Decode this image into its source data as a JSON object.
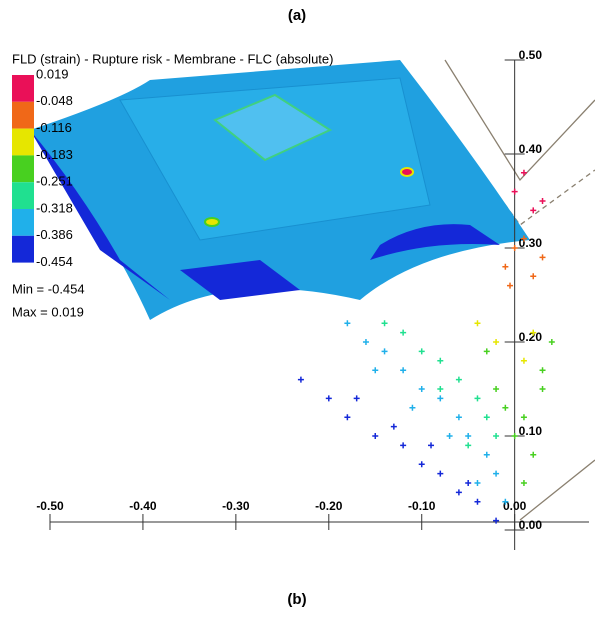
{
  "panel_label": "(a)",
  "caption": "(b)",
  "header": "FLD (strain) - Rupture risk - Membrane - FLC  (absolute)",
  "legend": {
    "labels": [
      "0.019",
      "-0.048",
      "-0.116",
      "-0.183",
      "-0.251",
      "-0.318",
      "-0.386",
      "-0.454"
    ],
    "colors": [
      "#ea1058",
      "#f06818",
      "#e6e600",
      "#48d020",
      "#20e090",
      "#20b0ea",
      "#1428d8"
    ]
  },
  "min_text": "Min = -0.454",
  "max_text": "Max =  0.019",
  "chart_data": {
    "type": "scatter",
    "xlim": [
      -0.5,
      0.08
    ],
    "ylim": [
      0,
      0.5
    ],
    "xticks": [
      {
        "value": -0.5,
        "label": "-0.50"
      },
      {
        "value": -0.4,
        "label": "-0.40"
      },
      {
        "value": -0.3,
        "label": "-0.30"
      },
      {
        "value": -0.2,
        "label": "-0.20"
      },
      {
        "value": -0.1,
        "label": "-0.10"
      },
      {
        "value": 0,
        "label": "0.00"
      }
    ],
    "yticks": [
      {
        "value": 0,
        "label": "0.00"
      },
      {
        "value": 0.1,
        "label": "0.10"
      },
      {
        "value": 0.2,
        "label": "0.20"
      },
      {
        "value": 0.3,
        "label": "0.30"
      },
      {
        "value": 0.4,
        "label": "0.40"
      },
      {
        "value": 0.5,
        "label": "0.50"
      }
    ],
    "series": [
      {
        "color": "#1428d8",
        "x": [
          -0.23,
          -0.2,
          -0.18,
          -0.15,
          -0.12,
          -0.1,
          -0.08,
          -0.06,
          -0.04,
          -0.02,
          -0.17,
          -0.13,
          -0.09,
          -0.05
        ],
        "values": [
          0.16,
          0.14,
          0.12,
          0.1,
          0.09,
          0.07,
          0.06,
          0.04,
          0.03,
          0.01,
          0.14,
          0.11,
          0.09,
          0.05
        ]
      },
      {
        "color": "#20b0ea",
        "x": [
          -0.18,
          -0.16,
          -0.14,
          -0.12,
          -0.1,
          -0.08,
          -0.06,
          -0.05,
          -0.03,
          -0.02,
          -0.01,
          -0.15,
          -0.11,
          -0.07,
          -0.04
        ],
        "values": [
          0.22,
          0.2,
          0.19,
          0.17,
          0.15,
          0.14,
          0.12,
          0.1,
          0.08,
          0.06,
          0.03,
          0.17,
          0.13,
          0.1,
          0.05
        ]
      },
      {
        "color": "#20e090",
        "x": [
          -0.14,
          -0.12,
          -0.1,
          -0.08,
          -0.06,
          -0.04,
          -0.03,
          -0.02,
          -0.08,
          -0.05
        ],
        "values": [
          0.22,
          0.21,
          0.19,
          0.18,
          0.16,
          0.14,
          0.12,
          0.1,
          0.15,
          0.09
        ]
      },
      {
        "color": "#48d020",
        "x": [
          -0.03,
          -0.02,
          -0.01,
          0,
          0.01,
          0.02,
          0.03,
          0.04,
          0.01,
          0.03
        ],
        "values": [
          0.19,
          0.15,
          0.13,
          0.1,
          0.05,
          0.08,
          0.17,
          0.2,
          0.12,
          0.15
        ]
      },
      {
        "color": "#e6e600",
        "x": [
          -0.04,
          -0.02,
          0.01,
          0.02
        ],
        "values": [
          0.22,
          0.2,
          0.18,
          0.21
        ]
      },
      {
        "color": "#f06818",
        "x": [
          -0.01,
          -0.005,
          0,
          0.01,
          0.02,
          0.03
        ],
        "values": [
          0.28,
          0.26,
          0.3,
          0.31,
          0.27,
          0.29
        ]
      },
      {
        "color": "#ea1058",
        "x": [
          0,
          0.01,
          0.02,
          0.03
        ],
        "values": [
          0.36,
          0.38,
          0.34,
          0.35
        ]
      }
    ]
  }
}
